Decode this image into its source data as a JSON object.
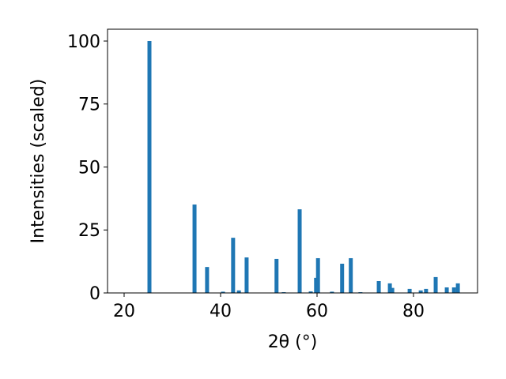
{
  "chart_data": {
    "type": "bar",
    "x_label": "2θ (°)",
    "y_label": "Intensities (scaled)",
    "x": [
      25.25,
      34.6,
      37.2,
      40.5,
      42.6,
      43.8,
      45.4,
      51.6,
      53.1,
      56.4,
      58.7,
      59.8,
      60.2,
      63.1,
      65.2,
      67.0,
      69.0,
      72.8,
      75.1,
      75.6,
      79.2,
      81.5,
      82.6,
      84.6,
      86.9,
      88.4,
      89.2
    ],
    "values": [
      100,
      35.1,
      10.3,
      0.5,
      21.9,
      1,
      14.1,
      13.5,
      0.3,
      33.2,
      0.6,
      6,
      13.8,
      0.5,
      11.6,
      13.8,
      0.3,
      4.7,
      3.8,
      2,
      1.6,
      1,
      1.6,
      6.3,
      2.2,
      2.2,
      3.8
    ],
    "color": "#1f77b4",
    "xlim": [
      16.56,
      93.28
    ],
    "ylim": [
      0,
      104.7
    ],
    "xticks": [
      20,
      40,
      60,
      80
    ],
    "yticks": [
      0,
      25,
      50,
      75,
      100
    ]
  }
}
